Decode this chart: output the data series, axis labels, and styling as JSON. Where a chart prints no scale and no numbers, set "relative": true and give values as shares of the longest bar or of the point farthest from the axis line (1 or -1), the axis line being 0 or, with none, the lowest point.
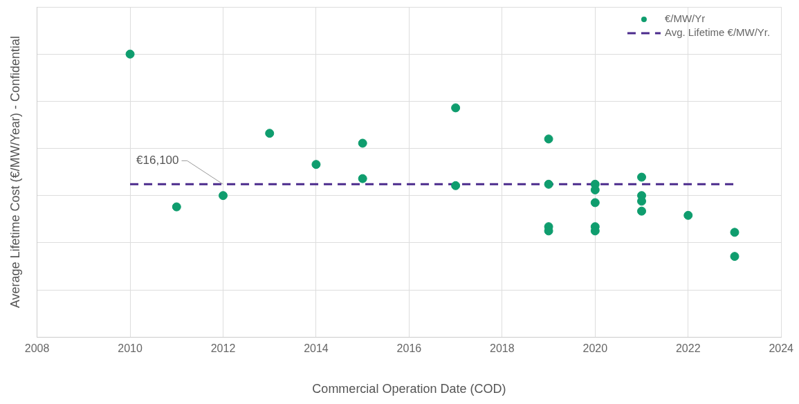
{
  "chart_data": {
    "type": "scatter",
    "relative": true,
    "xlabel": "Commercial Operation Date (COD)",
    "ylabel": "Average Lifetime Cost (€/MW/Year) - Confidential",
    "xlim": [
      2008,
      2024
    ],
    "xticks": [
      2008,
      2010,
      2012,
      2014,
      2016,
      2018,
      2020,
      2022,
      2024
    ],
    "grid": true,
    "legend": "top right",
    "marker": "circle",
    "series": [
      {
        "name": "€/MW/Yr",
        "color": "#0f9d6e",
        "x": [
          2010,
          2011,
          2012,
          2013,
          2014,
          2015,
          2015,
          2017,
          2017,
          2019,
          2019,
          2019,
          2019,
          2020,
          2020,
          2020,
          2020,
          2020,
          2021,
          2021,
          2021,
          2021,
          2022,
          2023,
          2023
        ],
        "values": [
          1.0,
          0.46,
          0.5,
          0.72,
          0.61,
          0.685,
          0.56,
          0.81,
          0.535,
          0.7,
          0.54,
          0.39,
          0.375,
          0.54,
          0.52,
          0.475,
          0.39,
          0.375,
          0.565,
          0.5,
          0.48,
          0.445,
          0.43,
          0.37,
          0.285
        ]
      },
      {
        "name": "Avg. Lifetime €/MW/Yr.",
        "type": "line",
        "color": "#4b2a8c",
        "line_style": "dashed",
        "marker": "none",
        "x": [
          2010,
          2023
        ],
        "values": [
          0.54,
          0.54
        ]
      }
    ],
    "annotations": [
      {
        "text": "€16,100",
        "x": 2012,
        "y": 0.54
      }
    ]
  }
}
